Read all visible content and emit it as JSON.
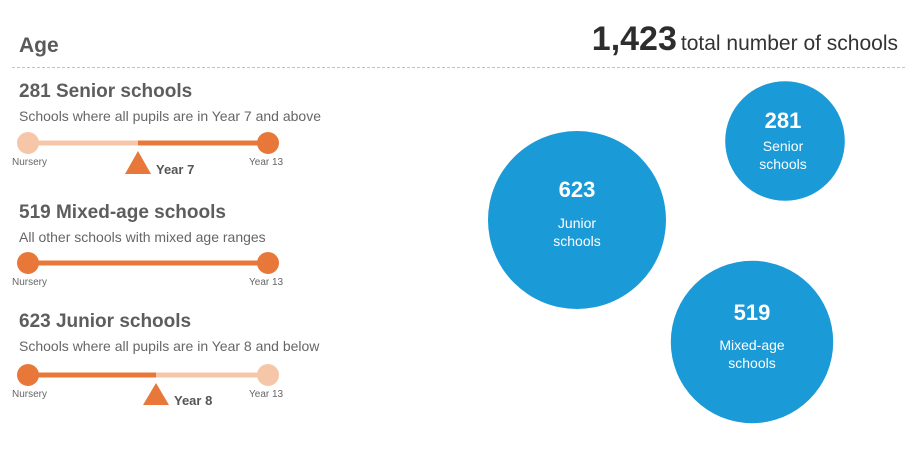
{
  "header": {
    "section_title": "Age",
    "total_number": "1,423",
    "total_label": "total number of schools"
  },
  "blocks": [
    {
      "title": "281 Senior schools",
      "description": "Schools where all pupils are in Year 7 and above",
      "start_label": "Nursery",
      "end_label": "Year 13",
      "marker_label": "Year 7",
      "highlight": "from-marker-to-end"
    },
    {
      "title": "519 Mixed-age schools",
      "description": "All other schools with mixed age ranges",
      "start_label": "Nursery",
      "end_label": "Year 13",
      "marker_label": "",
      "highlight": "full"
    },
    {
      "title": "623 Junior schools",
      "description": "Schools where all pupils are in Year 8 and below",
      "start_label": "Nursery",
      "end_label": "Year 13",
      "marker_label": "Year 8",
      "highlight": "start-to-marker"
    }
  ],
  "chart_data": {
    "type": "bubble",
    "title": "",
    "total": 1423,
    "series": [
      {
        "name": "Junior schools",
        "value": 623,
        "label_line1": "Junior",
        "label_line2": "schools"
      },
      {
        "name": "Senior schools",
        "value": 281,
        "label_line1": "Senior",
        "label_line2": "schools"
      },
      {
        "name": "Mixed-age schools",
        "value": 519,
        "label_line1": "Mixed-age",
        "label_line2": "schools"
      }
    ]
  },
  "colors": {
    "accent": "#e8773a",
    "accent_light": "#f6c6a8",
    "bubble": "#1a9ad6",
    "divider": "#c4c4c4"
  }
}
